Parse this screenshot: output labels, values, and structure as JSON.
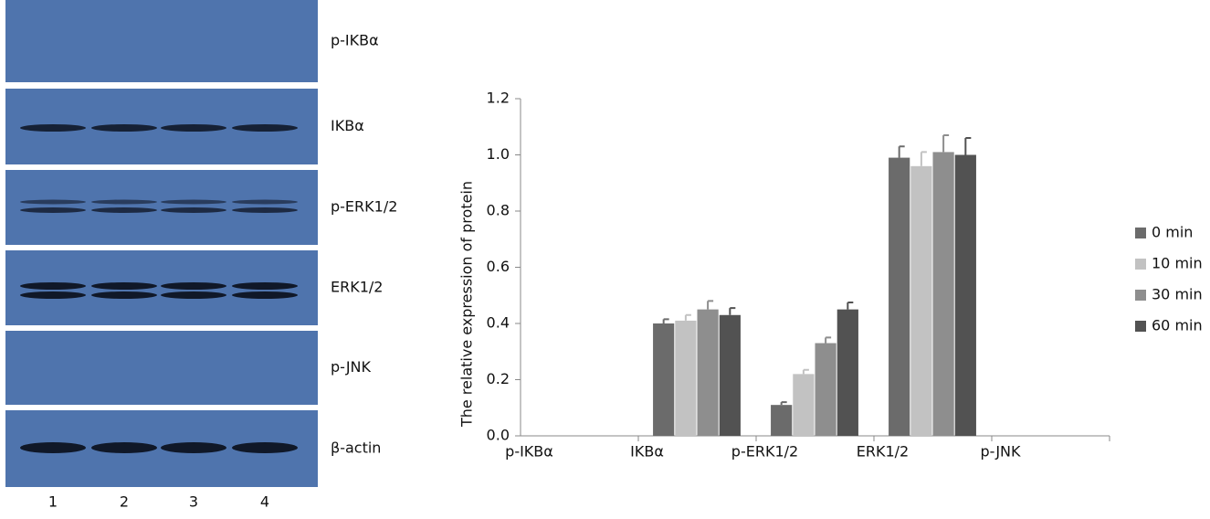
{
  "blot": {
    "labels": [
      "p-IKBα",
      "IKBα",
      "p-ERK1/2",
      "ERK1/2",
      "p-JNK",
      "β-actin"
    ],
    "lanes": [
      "1",
      "2",
      "3",
      "4"
    ]
  },
  "chart_data": {
    "type": "bar",
    "y_label": "The relative expression of protein",
    "categories": [
      "p-IKBα",
      "IKBα",
      "p-ERK1/2",
      "ERK1/2",
      "p-JNK"
    ],
    "series": [
      {
        "name": "0 min",
        "color": "#6b6b6b",
        "values": [
          null,
          0.4,
          0.11,
          0.99,
          null
        ],
        "errors": [
          null,
          0.015,
          0.01,
          0.04,
          null
        ]
      },
      {
        "name": "10 min",
        "color": "#c2c2c2",
        "values": [
          null,
          0.41,
          0.22,
          0.96,
          null
        ],
        "errors": [
          null,
          0.02,
          0.015,
          0.05,
          null
        ]
      },
      {
        "name": "30 min",
        "color": "#8e8e8e",
        "values": [
          null,
          0.45,
          0.33,
          1.01,
          null
        ],
        "errors": [
          null,
          0.03,
          0.02,
          0.06,
          null
        ]
      },
      {
        "name": "60 min",
        "color": "#525252",
        "values": [
          null,
          0.43,
          0.45,
          1.0,
          null
        ],
        "errors": [
          null,
          0.025,
          0.025,
          0.06,
          null
        ]
      }
    ],
    "ylim": [
      0,
      1.2
    ],
    "yticks": [
      {
        "value": 0,
        "label": "0.0"
      },
      0.2,
      0.4,
      0.6,
      0.8,
      {
        "value": 1,
        "label": "1.0"
      },
      1.2
    ],
    "legend": "right"
  }
}
